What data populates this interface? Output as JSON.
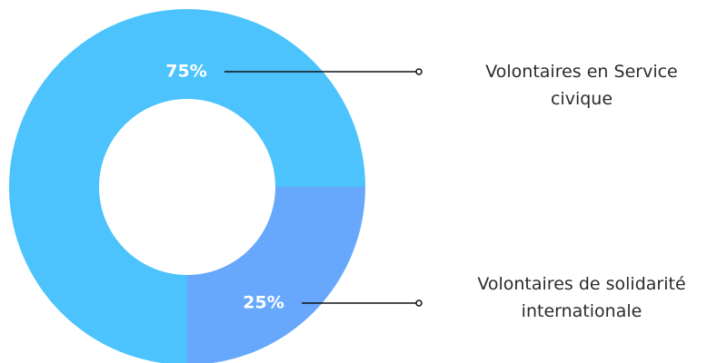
{
  "chart_data": {
    "type": "donut",
    "categories": [
      "Volontaires en Service civique",
      "Volontaires de solidarité internationale"
    ],
    "values": [
      75,
      25
    ],
    "value_labels": [
      "75%",
      "25%"
    ],
    "colors": [
      "#4cc3fc",
      "#67a8fc"
    ]
  }
}
